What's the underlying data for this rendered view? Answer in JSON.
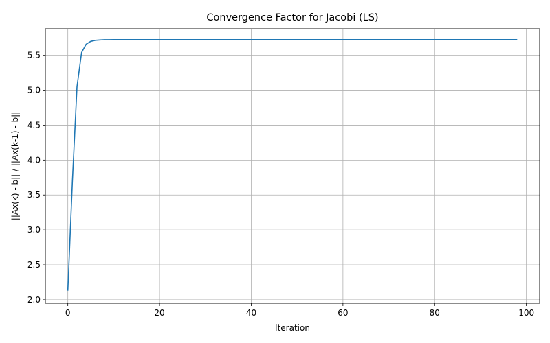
{
  "chart_data": {
    "type": "line",
    "title": "Convergence Factor for Jacobi (LS)",
    "xlabel": "Iteration",
    "ylabel": "||Ax(k) - b|| / ||Ax(k-1) - b||",
    "xlim": [
      -4.9,
      102.9
    ],
    "ylim": [
      1.95,
      5.88
    ],
    "xticks": [
      0,
      20,
      40,
      60,
      80,
      100
    ],
    "xtick_labels": [
      "0",
      "20",
      "40",
      "60",
      "80",
      "100"
    ],
    "yticks": [
      2.0,
      2.5,
      3.0,
      3.5,
      4.0,
      4.5,
      5.0,
      5.5
    ],
    "ytick_labels": [
      "2.0",
      "2.5",
      "3.0",
      "3.5",
      "4.0",
      "4.5",
      "5.0",
      "5.5"
    ],
    "grid": true,
    "color": "#1f77b4",
    "series": [
      {
        "x_start": 0,
        "x_end": 98,
        "values": [
          2.13,
          3.7,
          5.05,
          5.54,
          5.66,
          5.7,
          5.715,
          5.72,
          5.723,
          5.724,
          5.725
        ]
      }
    ]
  }
}
